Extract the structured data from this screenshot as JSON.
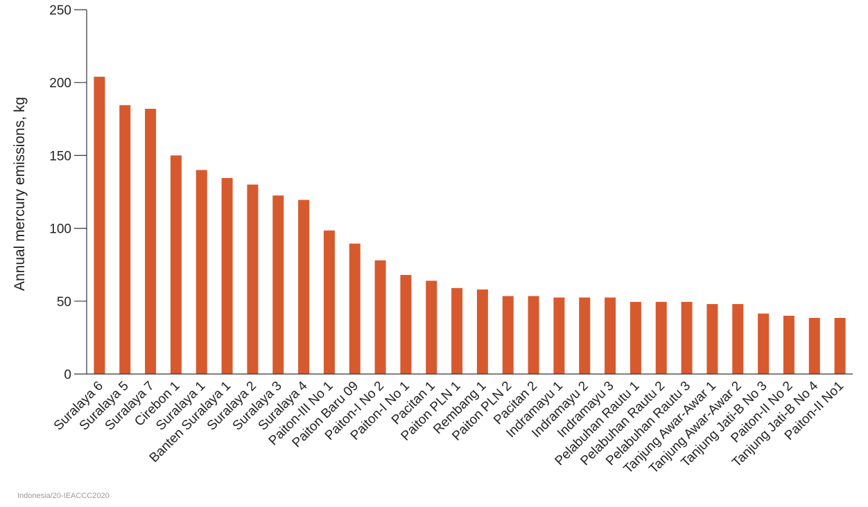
{
  "chart_data": {
    "type": "bar",
    "title": "",
    "xlabel": "",
    "ylabel": "Annual mercury emissions, kg",
    "ylim": [
      0,
      250
    ],
    "yticks": [
      0,
      50,
      100,
      150,
      200,
      250
    ],
    "grid": false,
    "bar_color": "#D75A2F",
    "categories": [
      "Suralaya 6",
      "Suralaya 5",
      "Suralaya 7",
      "Cirebon 1",
      "Suralaya 1",
      "Banten Suralaya 1",
      "Suralaya 2",
      "Suralaya 3",
      "Suralaya 4",
      "Paiton-III No 1",
      "Paiton Baru 09",
      "Paiton-I No 2",
      "Paiton-I No 1",
      "Pacitan 1",
      "Paiton PLN 1",
      "Rembang 1",
      "Paiton PLN 2",
      "Pacitan 2",
      "Indramayu 1",
      "Indramayu 2",
      "Indramayu 3",
      "Pelabuhan Rautu 1",
      "Pelabuhan Rautu 2",
      "Pelabuhan Rautu 3",
      "Tanjung Awar-Awar 1",
      "Tanjung Awar-Awar 2",
      "Tanjung Jati-B No 3",
      "Paiton-II No 2",
      "Tanjung Jati-B No 4",
      "Paiton-II No1"
    ],
    "values": [
      204,
      184.5,
      182,
      150,
      140,
      134.5,
      130,
      122.5,
      119.5,
      98.5,
      89.5,
      78,
      68,
      64,
      59,
      58,
      53.5,
      53.5,
      52.5,
      52.5,
      52.5,
      49.5,
      49.5,
      49.5,
      48,
      48,
      41.5,
      40,
      38.5,
      38.5
    ]
  },
  "footer": {
    "source": "Indonesia/20-IEACCC2020"
  }
}
